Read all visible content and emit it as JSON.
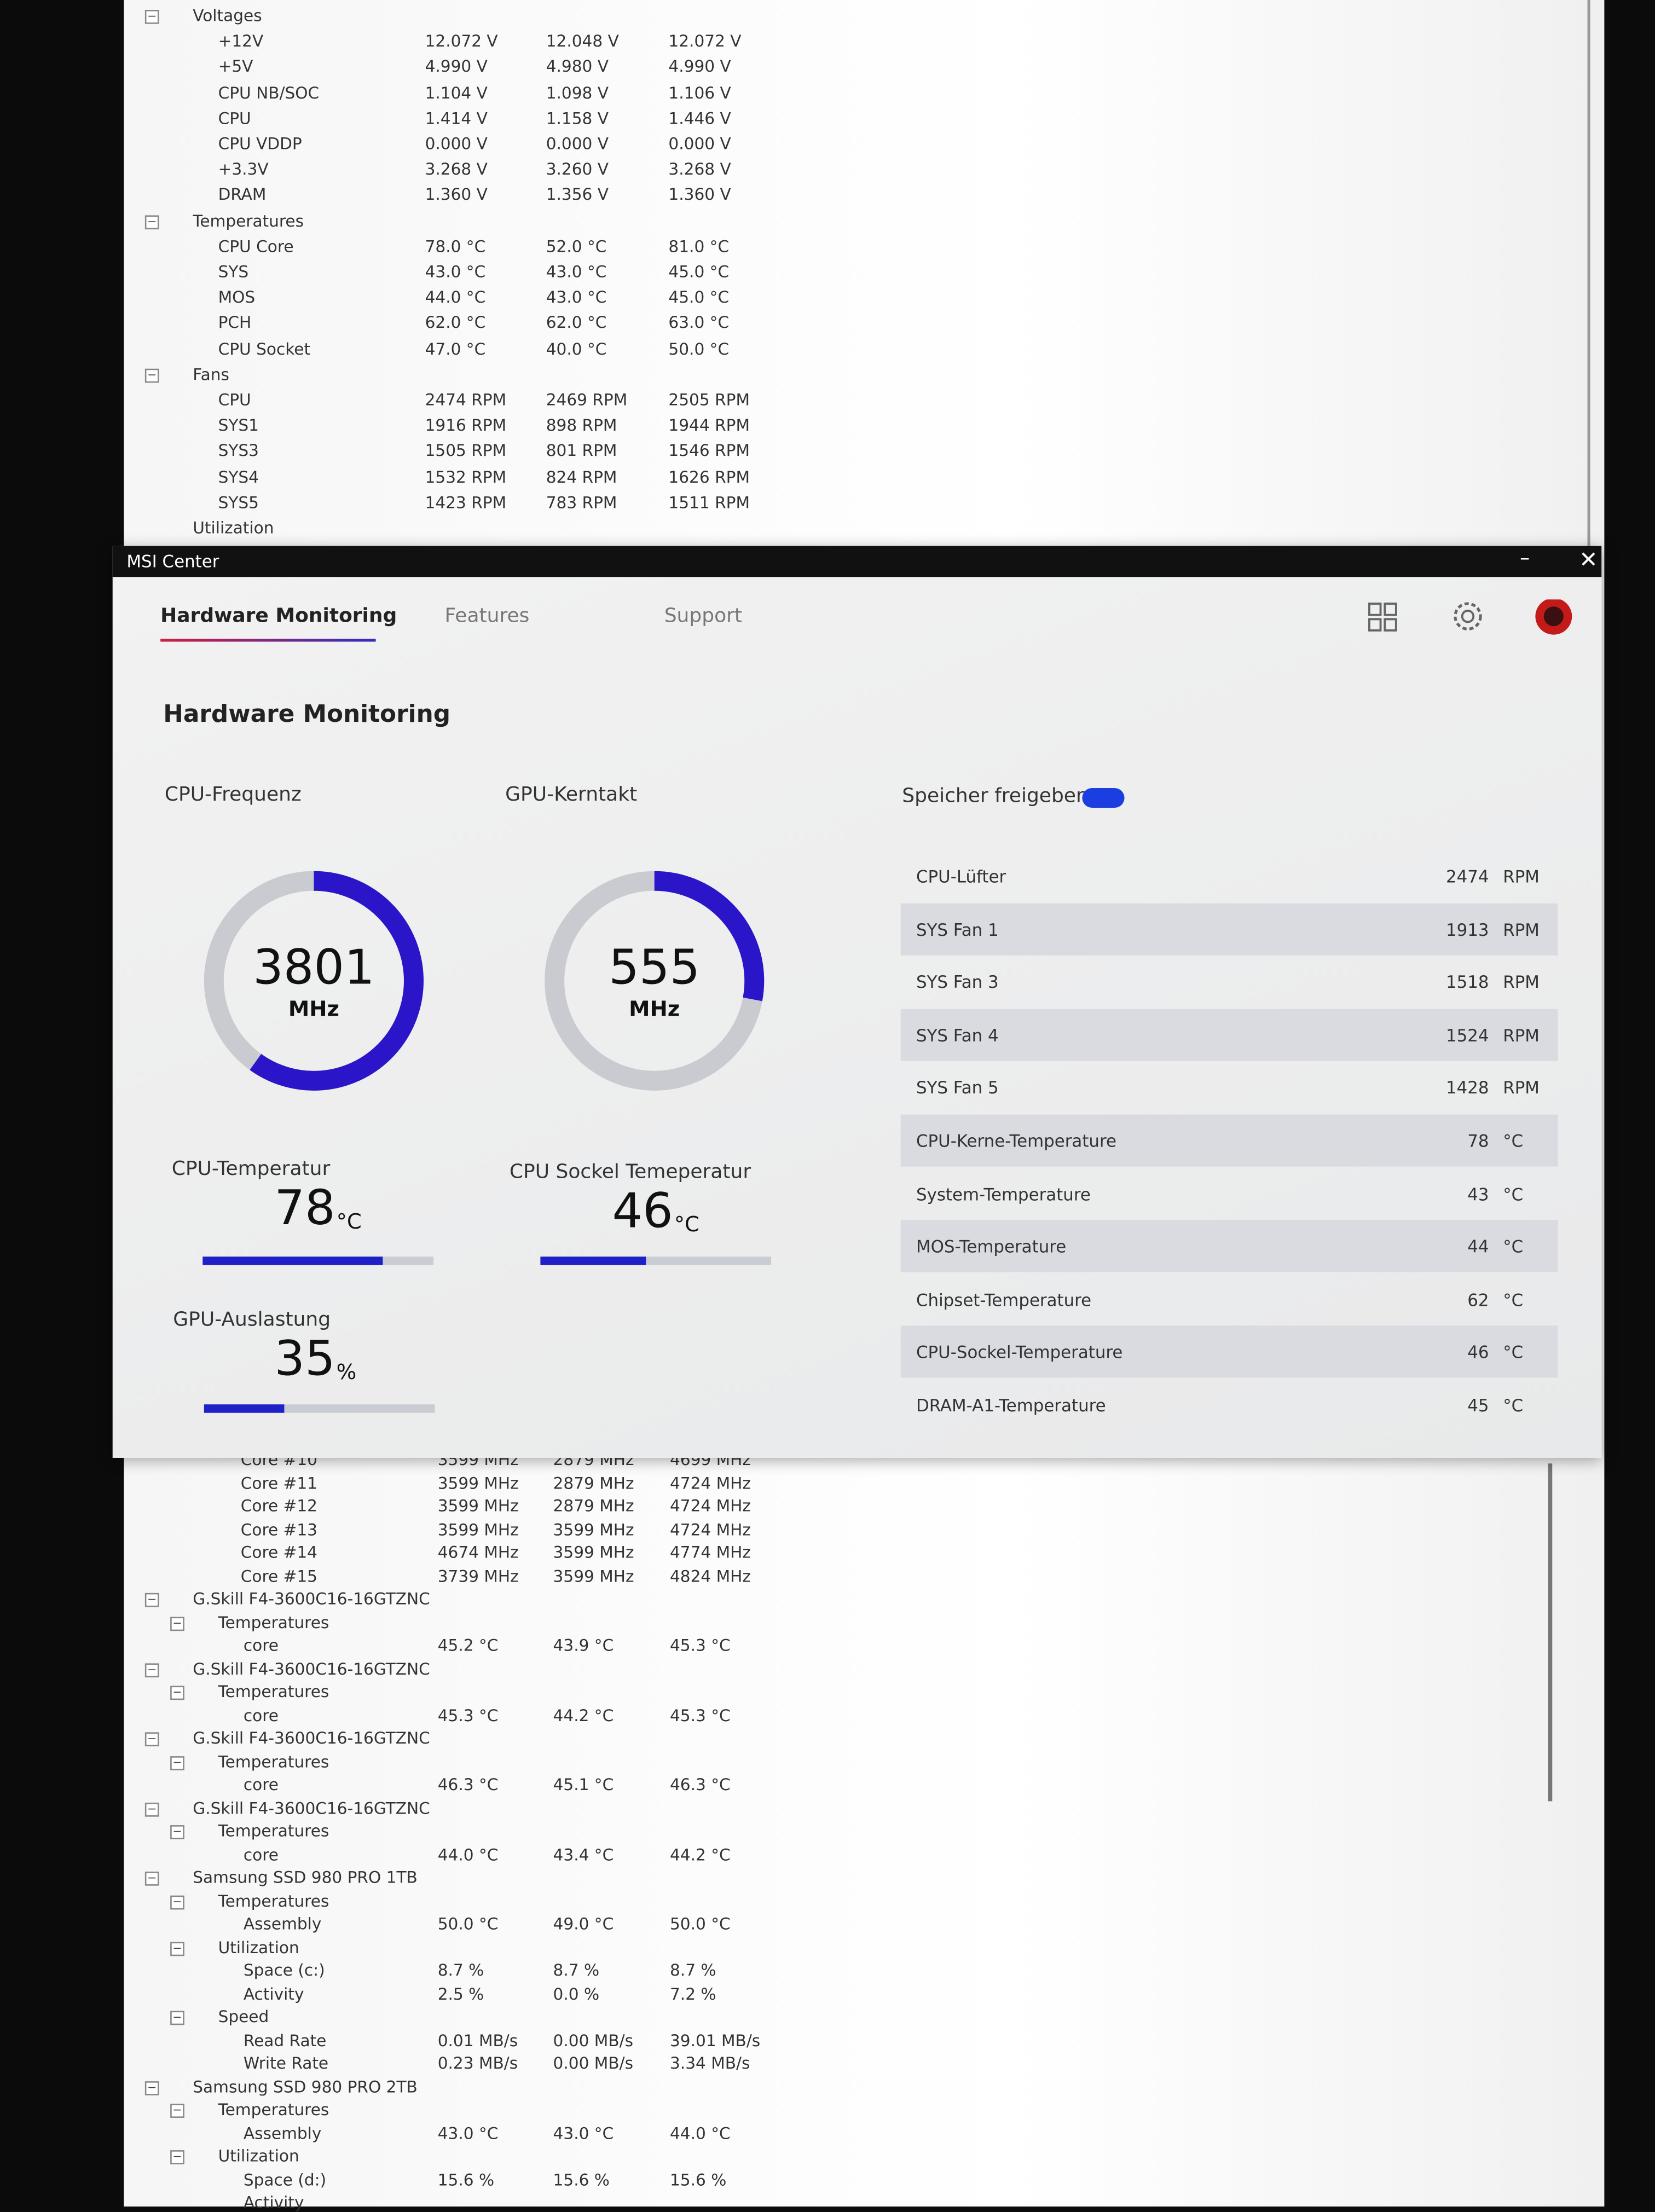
{
  "hwmonitor": {
    "top": [
      {
        "label": "Voltages",
        "children": [
          {
            "label": "+12V",
            "values": [
              "12.072 V",
              "12.048 V",
              "12.072 V"
            ]
          },
          {
            "label": "+5V",
            "values": [
              "4.990 V",
              "4.980 V",
              "4.990 V"
            ]
          },
          {
            "label": "CPU NB/SOC",
            "values": [
              "1.104 V",
              "1.098 V",
              "1.106 V"
            ]
          },
          {
            "label": "CPU",
            "values": [
              "1.414 V",
              "1.158 V",
              "1.446 V"
            ]
          },
          {
            "label": "CPU VDDP",
            "values": [
              "0.000 V",
              "0.000 V",
              "0.000 V"
            ]
          },
          {
            "label": "+3.3V",
            "values": [
              "3.268 V",
              "3.260 V",
              "3.268 V"
            ]
          },
          {
            "label": "DRAM",
            "values": [
              "1.360 V",
              "1.356 V",
              "1.360 V"
            ]
          }
        ]
      },
      {
        "label": "Temperatures",
        "children": [
          {
            "label": "CPU Core",
            "values": [
              "78.0 °C",
              "52.0 °C",
              "81.0 °C"
            ]
          },
          {
            "label": "SYS",
            "values": [
              "43.0 °C",
              "43.0 °C",
              "45.0 °C"
            ]
          },
          {
            "label": "MOS",
            "values": [
              "44.0 °C",
              "43.0 °C",
              "45.0 °C"
            ]
          },
          {
            "label": "PCH",
            "values": [
              "62.0 °C",
              "62.0 °C",
              "63.0 °C"
            ]
          },
          {
            "label": "CPU Socket",
            "values": [
              "47.0 °C",
              "40.0 °C",
              "50.0 °C"
            ]
          }
        ]
      },
      {
        "label": "Fans",
        "children": [
          {
            "label": "CPU",
            "values": [
              "2474 RPM",
              "2469 RPM",
              "2505 RPM"
            ]
          },
          {
            "label": "SYS1",
            "values": [
              "1916 RPM",
              "898 RPM",
              "1944 RPM"
            ]
          },
          {
            "label": "SYS3",
            "values": [
              "1505 RPM",
              "801 RPM",
              "1546 RPM"
            ]
          },
          {
            "label": "SYS4",
            "values": [
              "1532 RPM",
              "824 RPM",
              "1626 RPM"
            ]
          },
          {
            "label": "SYS5",
            "values": [
              "1423 RPM",
              "783 RPM",
              "1511 RPM"
            ]
          }
        ]
      },
      {
        "label": "Utilization"
      }
    ],
    "cores": [
      {
        "label": "Core #10",
        "values": [
          "3599 MHz",
          "2879 MHz",
          "4699 MHz"
        ]
      },
      {
        "label": "Core #11",
        "values": [
          "3599 MHz",
          "2879 MHz",
          "4724 MHz"
        ]
      },
      {
        "label": "Core #12",
        "values": [
          "3599 MHz",
          "2879 MHz",
          "4724 MHz"
        ]
      },
      {
        "label": "Core #13",
        "values": [
          "3599 MHz",
          "3599 MHz",
          "4724 MHz"
        ]
      },
      {
        "label": "Core #14",
        "values": [
          "4674 MHz",
          "3599 MHz",
          "4774 MHz"
        ]
      },
      {
        "label": "Core #15",
        "values": [
          "3739 MHz",
          "3599 MHz",
          "4824 MHz"
        ]
      }
    ],
    "devices": [
      {
        "label": "G.Skill F4-3600C16-16GTZNC",
        "children": [
          {
            "label": "Temperatures",
            "children": [
              {
                "label": "core",
                "values": [
                  "45.2 °C",
                  "43.9 °C",
                  "45.3 °C"
                ]
              }
            ]
          }
        ]
      },
      {
        "label": "G.Skill F4-3600C16-16GTZNC",
        "children": [
          {
            "label": "Temperatures",
            "children": [
              {
                "label": "core",
                "values": [
                  "45.3 °C",
                  "44.2 °C",
                  "45.3 °C"
                ]
              }
            ]
          }
        ]
      },
      {
        "label": "G.Skill F4-3600C16-16GTZNC",
        "children": [
          {
            "label": "Temperatures",
            "children": [
              {
                "label": "core",
                "values": [
                  "46.3 °C",
                  "45.1 °C",
                  "46.3 °C"
                ]
              }
            ]
          }
        ]
      },
      {
        "label": "G.Skill F4-3600C16-16GTZNC",
        "children": [
          {
            "label": "Temperatures",
            "children": [
              {
                "label": "core",
                "values": [
                  "44.0 °C",
                  "43.4 °C",
                  "44.2 °C"
                ]
              }
            ]
          }
        ]
      },
      {
        "label": "Samsung SSD 980 PRO 1TB",
        "children": [
          {
            "label": "Temperatures",
            "children": [
              {
                "label": "Assembly",
                "values": [
                  "50.0 °C",
                  "49.0 °C",
                  "50.0 °C"
                ]
              }
            ]
          },
          {
            "label": "Utilization",
            "children": [
              {
                "label": "Space (c:)",
                "values": [
                  "8.7 %",
                  "8.7 %",
                  "8.7 %"
                ]
              },
              {
                "label": "Activity",
                "values": [
                  "2.5 %",
                  "0.0 %",
                  "7.2 %"
                ]
              }
            ]
          },
          {
            "label": "Speed",
            "children": [
              {
                "label": "Read Rate",
                "values": [
                  "0.01 MB/s",
                  "0.00 MB/s",
                  "39.01 MB/s"
                ]
              },
              {
                "label": "Write Rate",
                "values": [
                  "0.23 MB/s",
                  "0.00 MB/s",
                  "3.34 MB/s"
                ]
              }
            ]
          }
        ]
      },
      {
        "label": "Samsung SSD 980 PRO 2TB",
        "children": [
          {
            "label": "Temperatures",
            "children": [
              {
                "label": "Assembly",
                "values": [
                  "43.0 °C",
                  "43.0 °C",
                  "44.0 °C"
                ]
              }
            ]
          },
          {
            "label": "Utilization",
            "children": [
              {
                "label": "Space (d:)",
                "values": [
                  "15.6 %",
                  "15.6 %",
                  "15.6 %"
                ]
              },
              {
                "label": "Activity"
              }
            ]
          }
        ]
      }
    ]
  },
  "msi_center": {
    "window_title": "MSI Center",
    "tabs": [
      "Hardware Monitoring",
      "Features",
      "Support"
    ],
    "heading": "Hardware Monitoring",
    "gauges": [
      {
        "label": "CPU-Frequenz",
        "value": 3801,
        "unit": "MHz"
      },
      {
        "label": "GPU-Kerntakt",
        "value": 555,
        "unit": "MHz"
      }
    ],
    "meters": [
      {
        "label": "CPU-Temperatur",
        "value": 78,
        "unit": "°C"
      },
      {
        "label": "CPU Sockel Temeperatur",
        "value": 46,
        "unit": "°C"
      },
      {
        "label": "GPU-Auslastung",
        "value": 35,
        "unit": "%"
      }
    ],
    "memory_button": "Speicher freigeben",
    "sensors": [
      {
        "name": "CPU-Lüfter",
        "value": 2474,
        "unit": "RPM"
      },
      {
        "name": "SYS Fan 1",
        "value": 1913,
        "unit": "RPM"
      },
      {
        "name": "SYS Fan 3",
        "value": 1518,
        "unit": "RPM"
      },
      {
        "name": "SYS Fan 4",
        "value": 1524,
        "unit": "RPM"
      },
      {
        "name": "SYS Fan 5",
        "value": 1428,
        "unit": "RPM"
      },
      {
        "name": "CPU-Kerne-Temperature",
        "value": 78,
        "unit": "°C"
      },
      {
        "name": "System-Temperature",
        "value": 43,
        "unit": "°C"
      },
      {
        "name": "MOS-Temperature",
        "value": 44,
        "unit": "°C"
      },
      {
        "name": "Chipset-Temperature",
        "value": 62,
        "unit": "°C"
      },
      {
        "name": "CPU-Sockel-Temperature",
        "value": 46,
        "unit": "°C"
      },
      {
        "name": "DRAM-A1-Temperature",
        "value": 45,
        "unit": "°C"
      }
    ]
  }
}
